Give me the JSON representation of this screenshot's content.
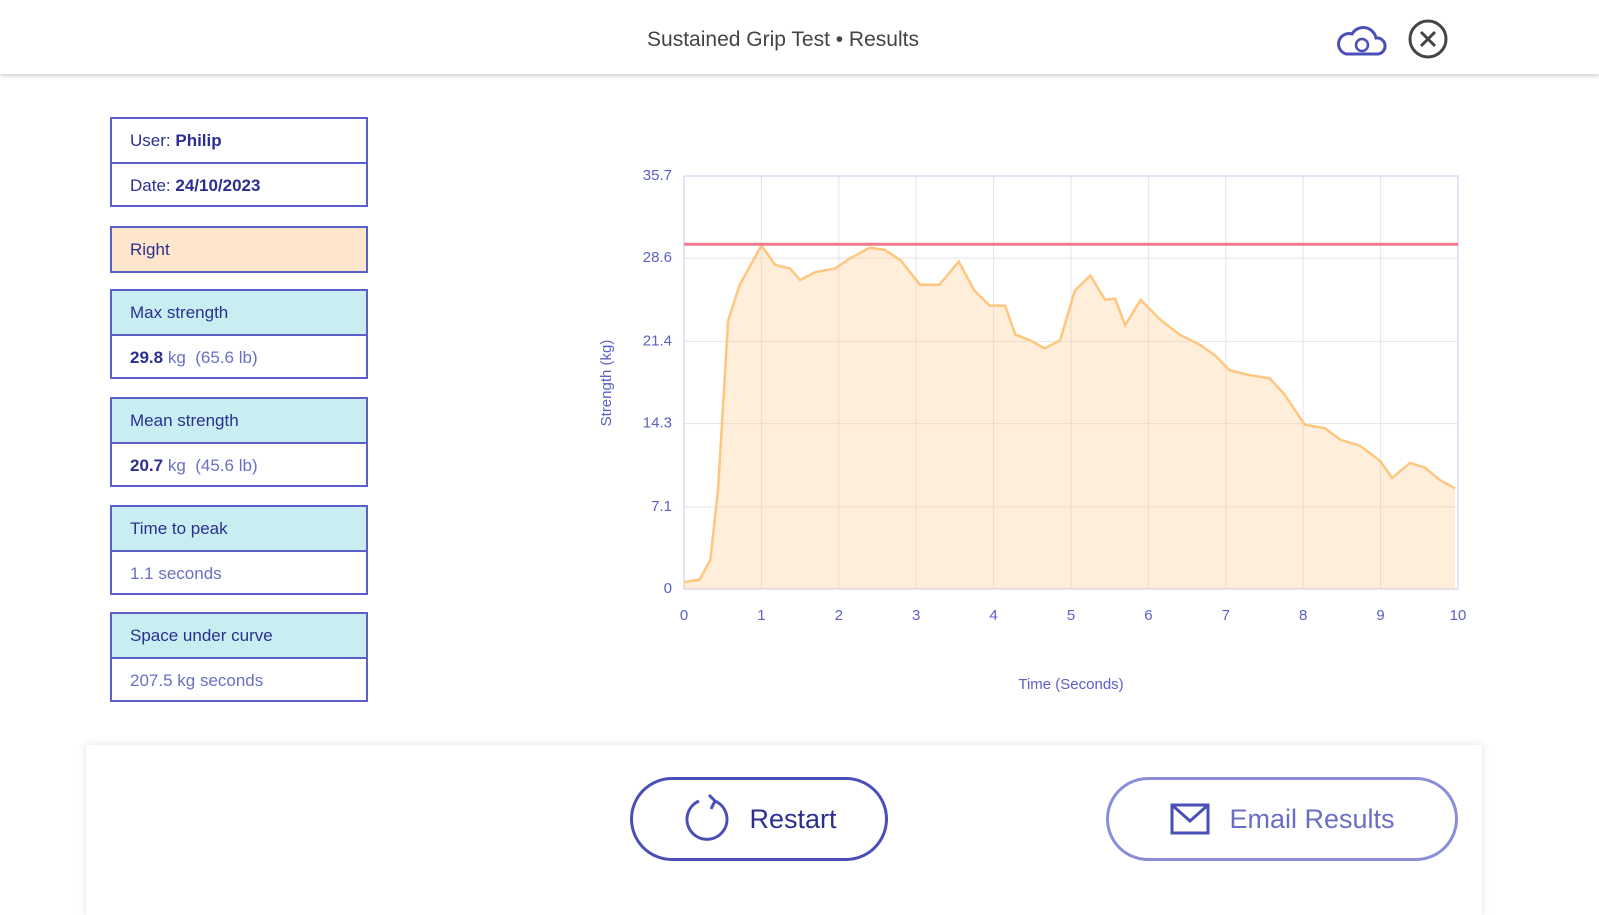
{
  "header": {
    "title": "Sustained Grip Test • Results"
  },
  "user": {
    "label": "User:",
    "value": "Philip"
  },
  "date": {
    "label": "Date:",
    "value": "24/10/2023"
  },
  "hand": "Right",
  "max_strength": {
    "title": "Max strength",
    "value": "29.8",
    "unit": "kg",
    "alt": "(65.6 lb)"
  },
  "mean_strength": {
    "title": "Mean strength",
    "value": "20.7",
    "unit": "kg",
    "alt": "(45.6 lb)"
  },
  "time_to_peak": {
    "title": "Time to peak",
    "value": "1.1 seconds"
  },
  "space_under_curve": {
    "title": "Space under curve",
    "value": "207.5 kg seconds"
  },
  "buttons": {
    "restart": "Restart",
    "email": "Email Results"
  },
  "chart_data": {
    "type": "area",
    "x_label": "Time (Seconds)",
    "y_label": "Strength (kg)",
    "x": [
      0,
      0.2,
      0.34,
      0.44,
      0.57,
      0.72,
      1.0,
      1.18,
      1.37,
      1.5,
      1.7,
      1.95,
      2.15,
      2.4,
      2.6,
      2.8,
      3.05,
      3.3,
      3.55,
      3.75,
      3.95,
      4.15,
      4.28,
      4.47,
      4.66,
      4.86,
      5.05,
      5.25,
      5.44,
      5.57,
      5.7,
      5.9,
      6.15,
      6.4,
      6.67,
      6.86,
      7.05,
      7.3,
      7.57,
      7.76,
      8.02,
      8.28,
      8.48,
      8.73,
      8.99,
      9.15,
      9.38,
      9.57,
      9.77,
      9.96
    ],
    "values": [
      0.6,
      0.8,
      2.5,
      8.6,
      23.2,
      26.3,
      29.7,
      28,
      27.7,
      26.7,
      27.4,
      27.7,
      28.6,
      29.5,
      29.3,
      28.4,
      26.3,
      26.3,
      28.3,
      25.8,
      24.5,
      24.5,
      22,
      21.5,
      20.8,
      21.5,
      25.8,
      27.1,
      25,
      25.1,
      22.8,
      25,
      23.3,
      22,
      21.1,
      20.2,
      18.9,
      18.5,
      18.2,
      16.8,
      14.2,
      13.9,
      12.9,
      12.4,
      11.1,
      9.6,
      10.9,
      10.5,
      9.4,
      8.7
    ],
    "color": "#ffc680",
    "reference_line": 29.8,
    "reference_color": "#f07a8e",
    "xlim": [
      0,
      10
    ],
    "xticks": [
      0,
      1,
      2,
      3,
      4,
      5,
      6,
      7,
      8,
      9,
      10
    ],
    "ylim": [
      0,
      35.7
    ],
    "yticks": [
      0,
      7.1,
      14.3,
      21.4,
      28.6,
      35.7
    ],
    "grid": true
  }
}
